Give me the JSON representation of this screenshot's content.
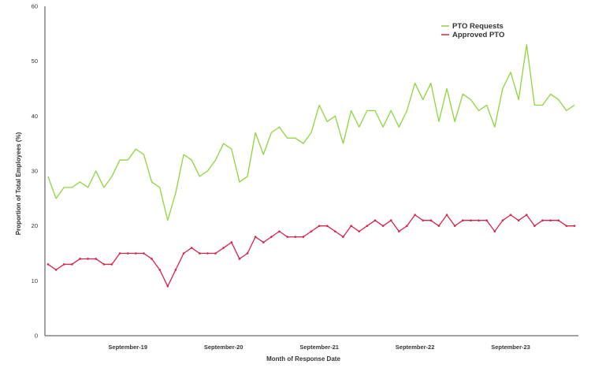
{
  "chart_data": {
    "type": "line",
    "xlabel": "Month of Response Date",
    "ylabel": "Proportion of Total Employees (%)",
    "ylim": [
      0,
      60
    ],
    "yticks": [
      0,
      10,
      20,
      30,
      40,
      50,
      60
    ],
    "xticks": [
      {
        "label": "September-19",
        "index": 10
      },
      {
        "label": "September-20",
        "index": 22
      },
      {
        "label": "September-21",
        "index": 34
      },
      {
        "label": "September-22",
        "index": 46
      },
      {
        "label": "September-23",
        "index": 58
      }
    ],
    "grid": false,
    "legend_position": "top-right",
    "series": [
      {
        "name": "PTO Requests",
        "color": "#8fd43c",
        "markers": false,
        "values": [
          29,
          25,
          27,
          27,
          28,
          27,
          30,
          27,
          29,
          32,
          32,
          34,
          33,
          28,
          27,
          21,
          26,
          33,
          32,
          29,
          30,
          32,
          35,
          34,
          28,
          29,
          37,
          33,
          37,
          38,
          36,
          36,
          35,
          37,
          42,
          39,
          40,
          35,
          41,
          38,
          41,
          41,
          38,
          41,
          38,
          41,
          46,
          43,
          46,
          39,
          45,
          39,
          44,
          43,
          41,
          42,
          38,
          45,
          48,
          43,
          53,
          42,
          42,
          44,
          43,
          41,
          42
        ]
      },
      {
        "name": "Approved PTO",
        "color": "#d6234a",
        "markers": true,
        "values": [
          13,
          12,
          13,
          13,
          14,
          14,
          14,
          13,
          13,
          15,
          15,
          15,
          15,
          14,
          12,
          9,
          12,
          15,
          16,
          15,
          15,
          15,
          16,
          17,
          14,
          15,
          18,
          17,
          18,
          19,
          18,
          18,
          18,
          19,
          20,
          20,
          19,
          18,
          20,
          19,
          20,
          21,
          20,
          21,
          19,
          20,
          22,
          21,
          21,
          20,
          22,
          20,
          21,
          21,
          21,
          21,
          19,
          21,
          22,
          21,
          22,
          20,
          21,
          21,
          21,
          20,
          20
        ]
      }
    ]
  }
}
